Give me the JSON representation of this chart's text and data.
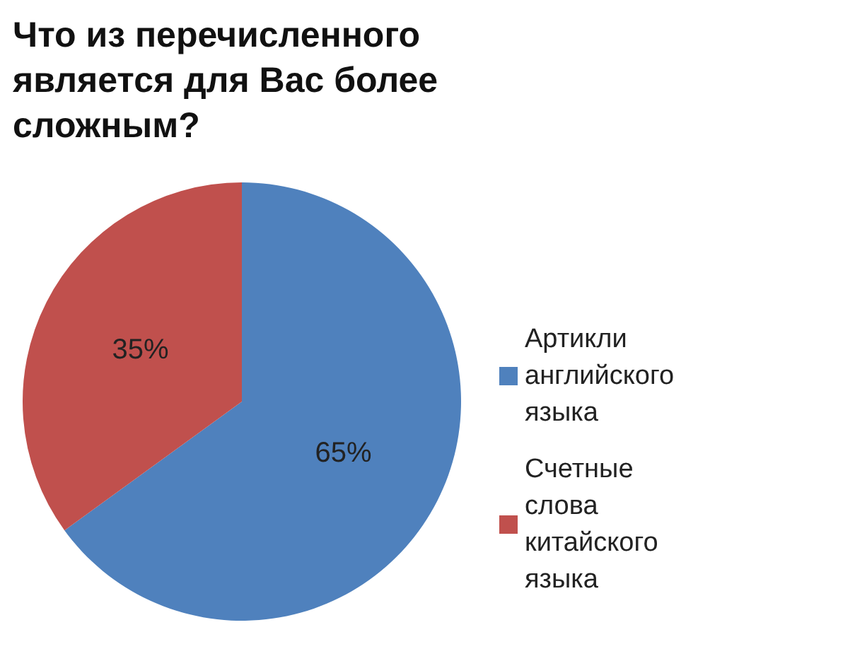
{
  "chart_data": {
    "type": "pie",
    "title": "Что из перечисленного является для Вас более сложным?",
    "categories": [
      "Артикли английского языка",
      "Счетные слова китайского языка"
    ],
    "values": [
      65,
      35
    ],
    "colors": [
      "#4f81bd",
      "#c0504d"
    ],
    "value_labels": [
      "65%",
      "35%"
    ],
    "legend": "right"
  }
}
